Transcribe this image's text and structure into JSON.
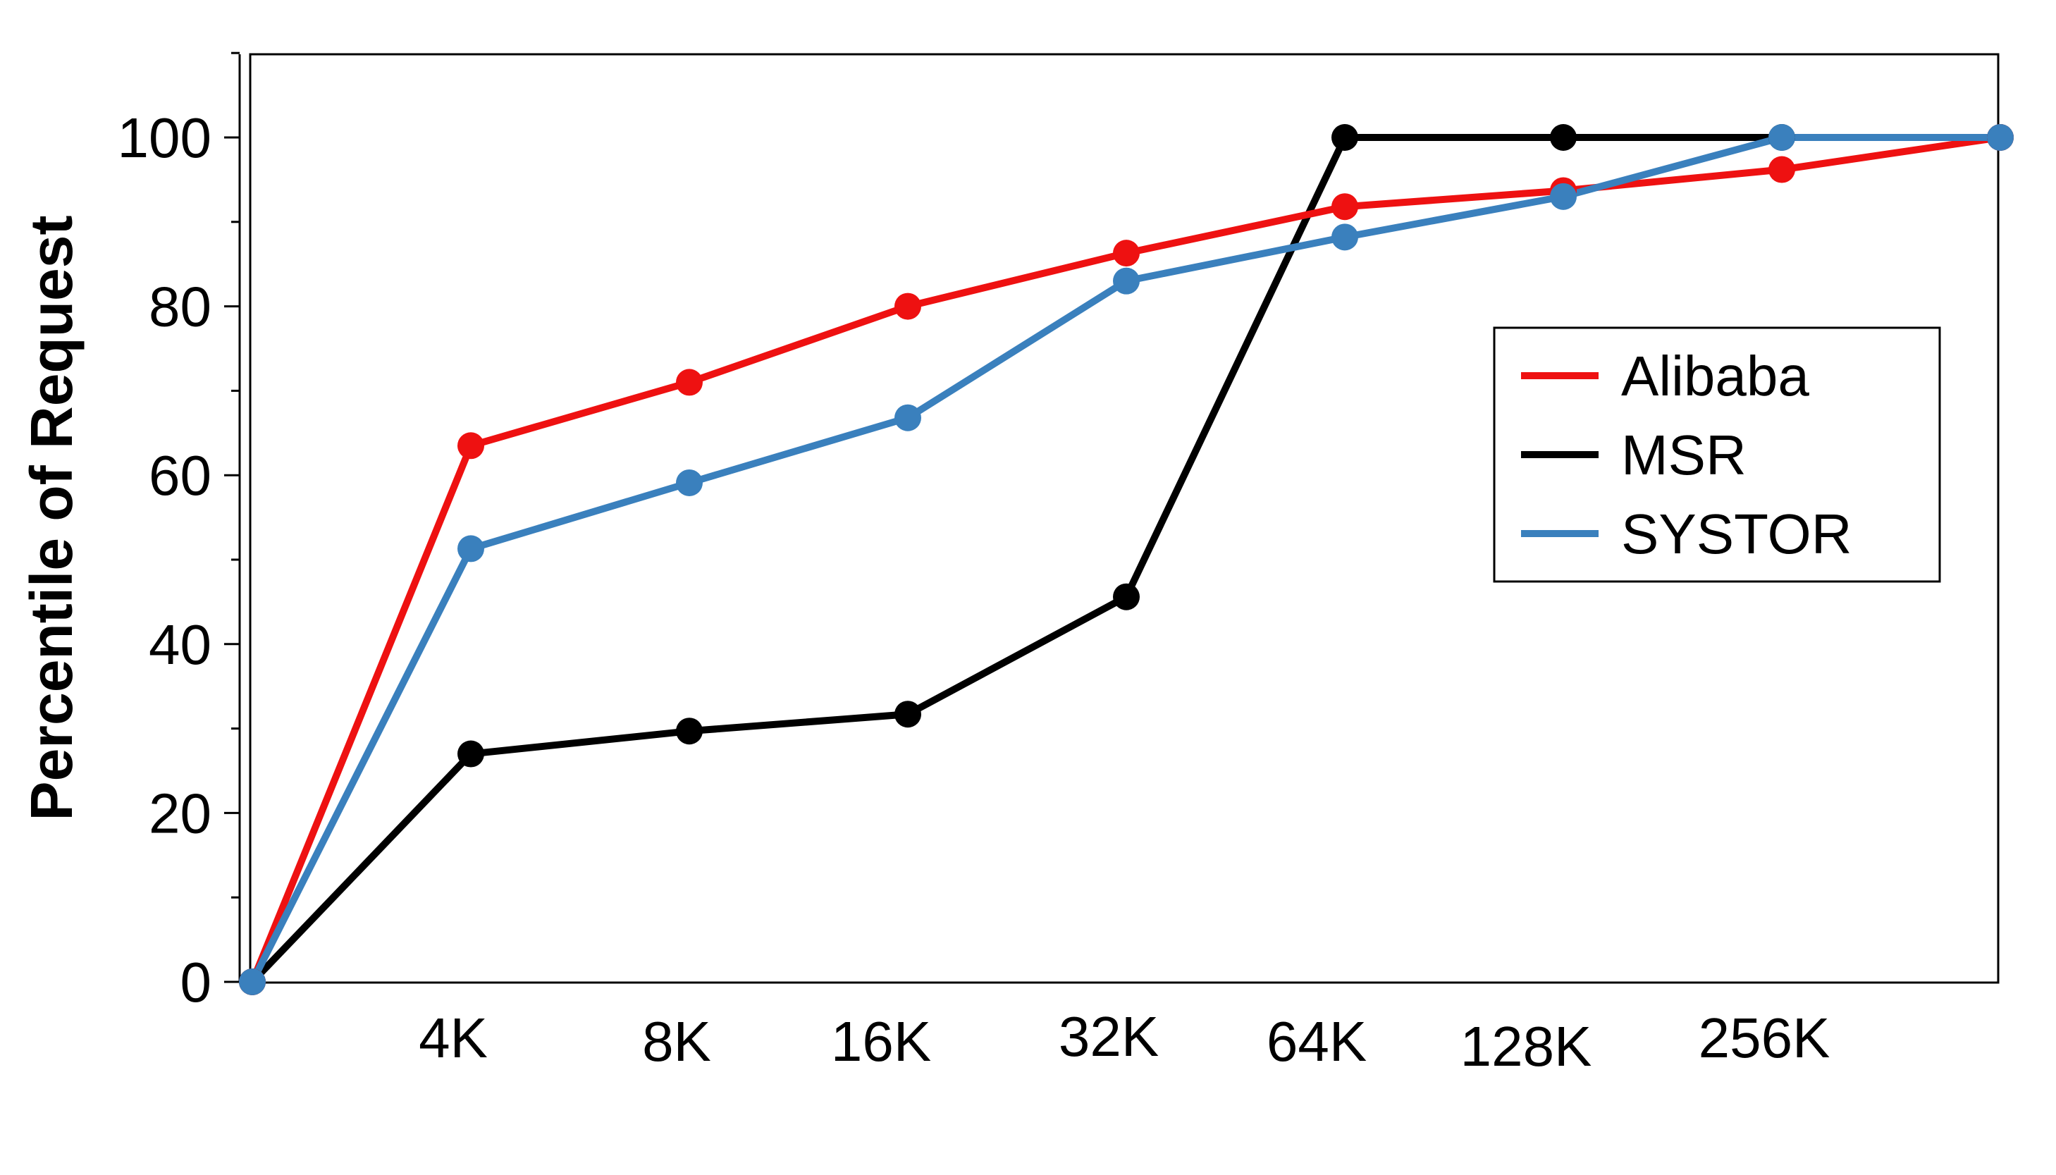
{
  "chart_data": {
    "type": "line",
    "title": "",
    "xlabel": "",
    "ylabel": "Percentile of Request",
    "categories": [
      "",
      "4K",
      "8K",
      "16K",
      "32K",
      "64K",
      "128K",
      "256K",
      ""
    ],
    "ylim": [
      0,
      110
    ],
    "yticks": [
      0,
      20,
      40,
      60,
      80,
      100
    ],
    "yticks_labels": [
      "0",
      "20",
      "40",
      "60",
      "80",
      "100"
    ],
    "grid": false,
    "legend_position": "center-right",
    "series": [
      {
        "name": "Alibaba",
        "color": "#ee1111",
        "values": [
          0,
          63.5,
          71,
          80,
          86.3,
          91.8,
          93.7,
          96.2,
          100
        ]
      },
      {
        "name": "MSR",
        "color": "#000000",
        "values": [
          0,
          27,
          29.7,
          31.7,
          45.6,
          100,
          100,
          100,
          100
        ]
      },
      {
        "name": "SYSTOR",
        "color": "#3a80bd",
        "values": [
          0,
          51.3,
          59.1,
          66.8,
          83,
          88.2,
          93,
          100,
          100
        ]
      }
    ]
  }
}
